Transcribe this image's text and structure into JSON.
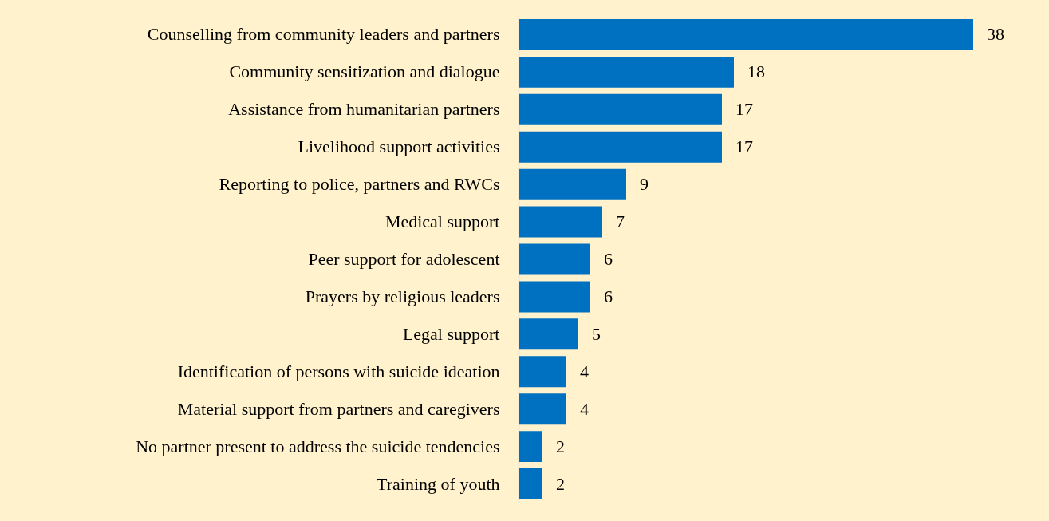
{
  "chart_data": {
    "type": "bar",
    "orientation": "horizontal",
    "data_labels": true,
    "color": "#0070c0",
    "categories": [
      "Counselling from community leaders and partners",
      "Community sensitization and dialogue",
      "Assistance from humanitarian partners",
      "Livelihood support activities",
      "Reporting to police, partners and RWCs",
      "Medical support",
      "Peer support for adolescent",
      "Prayers by religious leaders",
      "Legal support",
      "Identification of persons with suicide ideation",
      "Material support from partners and caregivers",
      "No partner present to address the suicide tendencies",
      "Training of youth"
    ],
    "values": [
      38,
      18,
      17,
      17,
      9,
      7,
      6,
      6,
      5,
      4,
      4,
      2,
      2
    ]
  }
}
